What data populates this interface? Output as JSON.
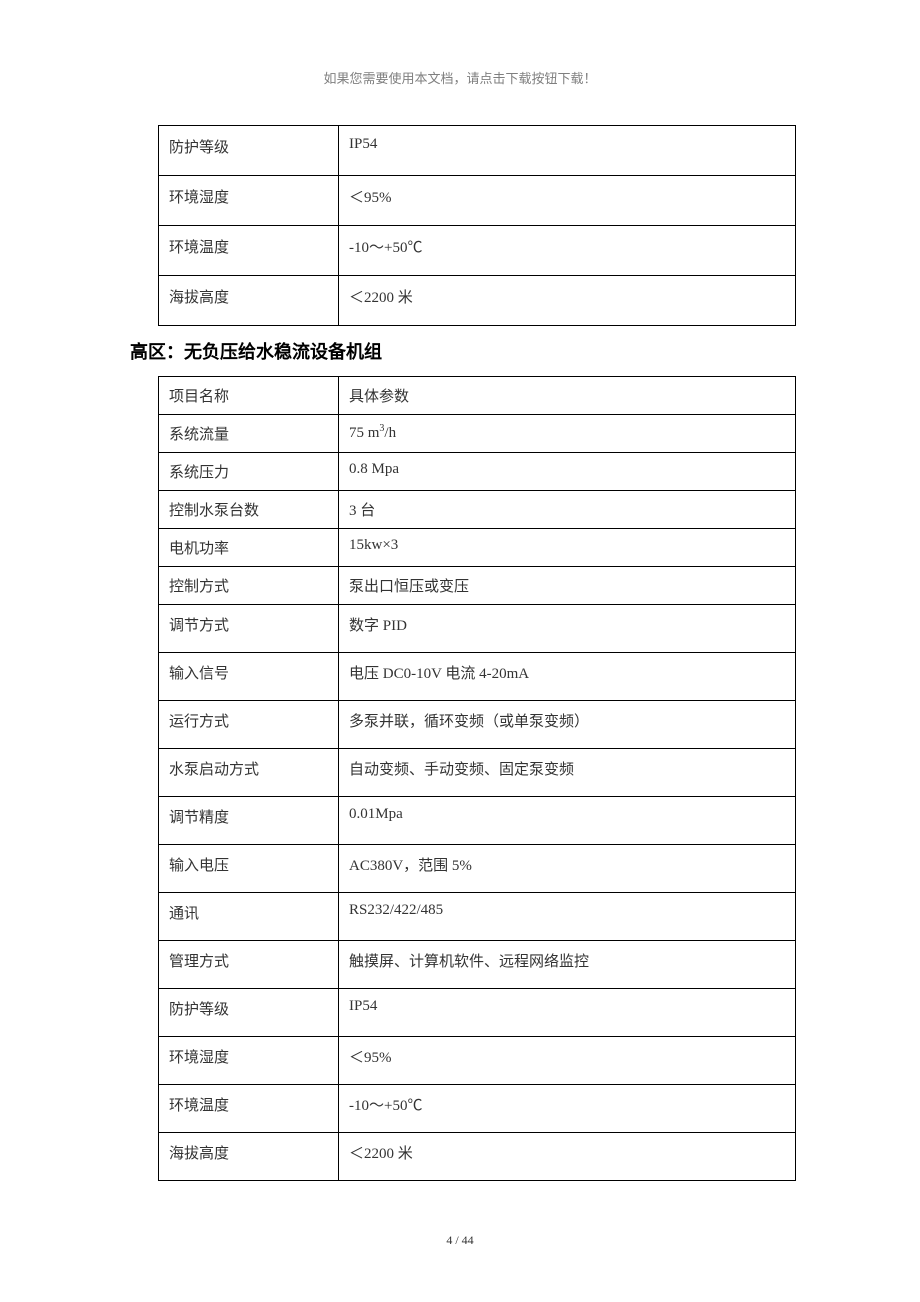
{
  "header_note": "如果您需要使用本文档，请点击下载按钮下载！",
  "section_title": "高区：无负压给水稳流设备机组",
  "footer": "4 / 44",
  "table1": {
    "rows": [
      {
        "label": "防护等级",
        "value": "IP54"
      },
      {
        "label": "环境湿度",
        "value": "＜95%"
      },
      {
        "label": "环境温度",
        "value": "-10～+50℃"
      },
      {
        "label": "海拔高度",
        "value": "＜2200 米"
      }
    ]
  },
  "table2": {
    "rows": [
      {
        "label": "项目名称",
        "value": "具体参数",
        "h": "short"
      },
      {
        "label": "系统流量",
        "value": "75 m³/h",
        "h": "short",
        "has_sup": true
      },
      {
        "label": "系统压力",
        "value": "0.8 Mpa",
        "h": "short"
      },
      {
        "label": "控制水泵台数",
        "value": "3 台",
        "h": "short"
      },
      {
        "label": "电机功率",
        "value": "15kw×3",
        "h": "short"
      },
      {
        "label": "控制方式",
        "value": "泵出口恒压或变压",
        "h": "short"
      },
      {
        "label": "调节方式",
        "value": "数字 PID",
        "h": "tall"
      },
      {
        "label": "输入信号",
        "value": "电压 DC0-10V    电流 4-20mA",
        "h": "tall"
      },
      {
        "label": "运行方式",
        "value": "多泵并联，循环变频（或单泵变频）",
        "h": "tall"
      },
      {
        "label": "水泵启动方式",
        "value": "自动变频、手动变频、固定泵变频",
        "h": "tall"
      },
      {
        "label": "调节精度",
        "value": "0.01Mpa",
        "h": "tall"
      },
      {
        "label": "输入电压",
        "value": "AC380V，范围 5%",
        "h": "tall"
      },
      {
        "label": "通讯",
        "value": "RS232/422/485",
        "h": "tall"
      },
      {
        "label": "管理方式",
        "value": "触摸屏、计算机软件、远程网络监控",
        "h": "tall"
      },
      {
        "label": "防护等级",
        "value": "IP54",
        "h": "tall"
      },
      {
        "label": "环境湿度",
        "value": "＜95%",
        "h": "tall"
      },
      {
        "label": "环境温度",
        "value": "-10～+50℃",
        "h": "tall"
      },
      {
        "label": "海拔高度",
        "value": "＜2200 米",
        "h": "tall"
      }
    ]
  }
}
